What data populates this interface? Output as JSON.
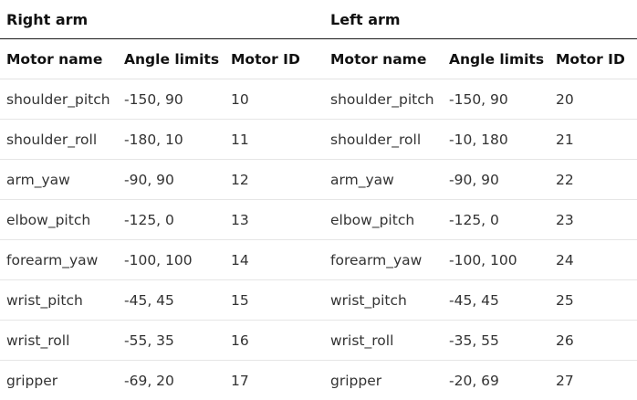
{
  "groups": {
    "right": "Right arm",
    "left": "Left arm"
  },
  "columns": [
    "Motor name",
    "Angle limits",
    "Motor ID",
    "Motor name",
    "Angle limits",
    "Motor ID"
  ],
  "rows": [
    [
      "shoulder_pitch",
      "-150, 90",
      "10",
      "shoulder_pitch",
      "-150, 90",
      "20"
    ],
    [
      "shoulder_roll",
      "-180, 10",
      "11",
      "shoulder_roll",
      "-10, 180",
      "21"
    ],
    [
      "arm_yaw",
      "-90, 90",
      "12",
      "arm_yaw",
      "-90, 90",
      "22"
    ],
    [
      "elbow_pitch",
      "-125, 0",
      "13",
      "elbow_pitch",
      "-125, 0",
      "23"
    ],
    [
      "forearm_yaw",
      "-100, 100",
      "14",
      "forearm_yaw",
      "-100, 100",
      "24"
    ],
    [
      "wrist_pitch",
      "-45, 45",
      "15",
      "wrist_pitch",
      "-45, 45",
      "25"
    ],
    [
      "wrist_roll",
      "-55, 35",
      "16",
      "wrist_roll",
      "-35, 55",
      "26"
    ],
    [
      "gripper",
      "-69, 20",
      "17",
      "gripper",
      "-20, 69",
      "27"
    ]
  ]
}
